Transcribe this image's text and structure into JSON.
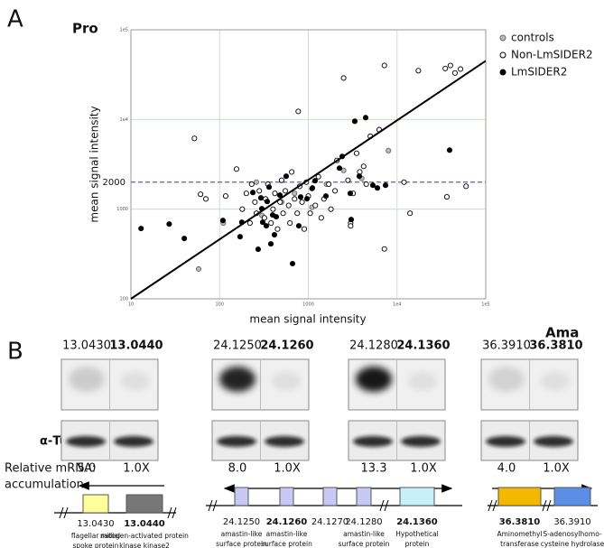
{
  "panel_labels": [
    "A",
    "B"
  ],
  "conditions": [
    "Pro",
    "Ama"
  ],
  "chart_data": {
    "type": "scatter",
    "x_label": "mean signal intensity",
    "y_label": "mean signal intensity",
    "log_x": true,
    "log_y": true,
    "grid": true,
    "grid_color": "#c8e0c8",
    "xlim": [
      10,
      100000
    ],
    "ylim": [
      100,
      100000
    ],
    "xticks": [
      10,
      100,
      1000,
      {
        "value": 10000,
        "label": "1e4"
      },
      {
        "value": 100000,
        "label": "1e5"
      }
    ],
    "yticks": [
      100,
      1000,
      {
        "value": 10000,
        "label": "1e4"
      },
      {
        "value": 100000,
        "label": "1e5"
      }
    ],
    "reference_line": {
      "value": 2000,
      "color": "#5b5bd6"
    },
    "fit_line": {
      "x": [
        10,
        100000
      ],
      "y": [
        100,
        45000
      ],
      "color": "#000000"
    },
    "legend": "top-right",
    "series": [
      {
        "name": "controls",
        "color": "#666666",
        "fill": "#bbbbbb",
        "x": [
          58,
          110,
          260,
          300,
          500,
          700,
          1100,
          1600,
          2500,
          4000,
          8000
        ],
        "y": [
          215,
          700,
          2000,
          850,
          1200,
          1500,
          1050,
          1900,
          2700,
          2200,
          4500
        ]
      },
      {
        "name": "Non-LmSIDER2",
        "color": "#000000",
        "fill": "#ffffff",
        "x": [
          52,
          61,
          117,
          155,
          70,
          180,
          200,
          220,
          230,
          250,
          260,
          280,
          320,
          330,
          350,
          380,
          400,
          420,
          450,
          480,
          500,
          520,
          550,
          600,
          620,
          650,
          700,
          750,
          770,
          800,
          850,
          900,
          950,
          1000,
          1050,
          1100,
          1200,
          1300,
          1400,
          1500,
          1700,
          1800,
          2000,
          2100,
          2500,
          2800,
          3000,
          3200,
          3500,
          3800,
          4200,
          4500,
          5000,
          6300,
          7200,
          7200,
          12000,
          17400,
          35000,
          40000,
          45000,
          52000,
          36500,
          60000,
          14000,
          3000
        ],
        "y": [
          6150,
          1466,
          1400,
          2800,
          1300,
          1000,
          1500,
          700,
          1900,
          1200,
          900,
          1600,
          800,
          1300,
          1900,
          700,
          1000,
          1500,
          600,
          1200,
          2100,
          900,
          1600,
          1100,
          700,
          2600,
          1300,
          900,
          12300,
          1800,
          1200,
          600,
          2000,
          1400,
          900,
          1700,
          1100,
          2300,
          800,
          1300,
          1900,
          1000,
          1600,
          3500,
          29000,
          2100,
          700,
          1500,
          4200,
          2600,
          3000,
          1900,
          6500,
          7700,
          40000,
          360,
          2000,
          35000,
          37000,
          40000,
          33000,
          36500,
          1370,
          1800,
          900,
          650
        ]
      },
      {
        "name": "LmSIDER2",
        "color": "#000000",
        "fill": "#000000",
        "x": [
          13,
          27,
          40,
          109,
          170,
          178,
          237,
          292,
          299,
          306,
          344,
          361,
          396,
          415,
          435,
          478,
          563,
          664,
          819,
          966,
          1111,
          1192,
          1579,
          2244,
          2409,
          2974,
          3043,
          3342,
          3758,
          4429,
          5343,
          6010,
          7420,
          39150,
          272,
          336,
          781,
          378
        ],
        "y": [
          608,
          683,
          471,
          748,
          493,
          714,
          1535,
          1336,
          1012,
          714,
          1217,
          1762,
          861,
          518,
          822,
          1432,
          2328,
          247,
          1368,
          1306,
          1722,
          2075,
          1400,
          2865,
          3872,
          1500,
          766,
          9550,
          2328,
          10470,
          1846,
          1722,
          1846,
          4550,
          357,
          652,
          652,
          410
        ]
      }
    ]
  },
  "panel_b": {
    "loading_control": "α-Tub",
    "ratio_label": [
      "Relative mRNA:",
      "accumulation"
    ],
    "groups": [
      {
        "genes": [
          {
            "id": "13.0430",
            "bold": false
          },
          {
            "id": "13.0440",
            "bold": true
          }
        ],
        "ratios": [
          "5.0",
          "1.0X"
        ]
      },
      {
        "genes": [
          {
            "id": "24.1250",
            "bold": false
          },
          {
            "id": "24.1260",
            "bold": true
          }
        ],
        "ratios": [
          "8.0",
          "1.0X"
        ]
      },
      {
        "genes": [
          {
            "id": "24.1280",
            "bold": false
          },
          {
            "id": "24.1360",
            "bold": true
          }
        ],
        "ratios": [
          "13.3",
          "1.0X"
        ]
      },
      {
        "genes": [
          {
            "id": "36.3910",
            "bold": false
          },
          {
            "id": "36.3810",
            "bold": true
          }
        ],
        "ratios": [
          "4.0",
          "1.0X"
        ]
      }
    ],
    "diagrams": [
      {
        "direction": "left",
        "genes": [
          {
            "id": "13.0430",
            "bold": false,
            "color": "#ffff99",
            "desc": [
              "flagellar radial",
              "spoke protein"
            ]
          },
          {
            "id": "13.0440",
            "bold": true,
            "color": "#777777",
            "desc": [
              "mitogen-activated protein",
              "kinase kinase2"
            ]
          }
        ]
      },
      {
        "direction": "both",
        "genes": [
          {
            "id": "24.1250",
            "bold": false,
            "color": "#c8c8f4",
            "desc": [
              "amastin-like",
              "surface protein"
            ]
          },
          {
            "id": "24.1260",
            "bold": true,
            "color": "#c8c8f4",
            "desc": [
              "amastin-like",
              "surface protein"
            ]
          },
          {
            "id": "24.1270",
            "bold": false,
            "color": "#c8c8f4",
            "desc": []
          },
          {
            "id": "24.1280",
            "bold": false,
            "color": "#c8c8f4",
            "desc": [
              "amastin-like",
              "surface protein"
            ]
          },
          {
            "id": "24.1360",
            "bold": true,
            "color": "#c8f0fa",
            "desc": [
              "Hypothetical",
              "protein"
            ]
          }
        ]
      },
      {
        "direction": "right",
        "genes": [
          {
            "id": "36.3810",
            "bold": true,
            "color": "#f5b800",
            "desc": [
              "Aminomethyl",
              "transferase"
            ]
          },
          {
            "id": "36.3910",
            "bold": false,
            "color": "#5b8fe6",
            "desc": [
              "S-adenosylhomo-",
              "cysteine hydrolase"
            ]
          }
        ]
      }
    ]
  }
}
